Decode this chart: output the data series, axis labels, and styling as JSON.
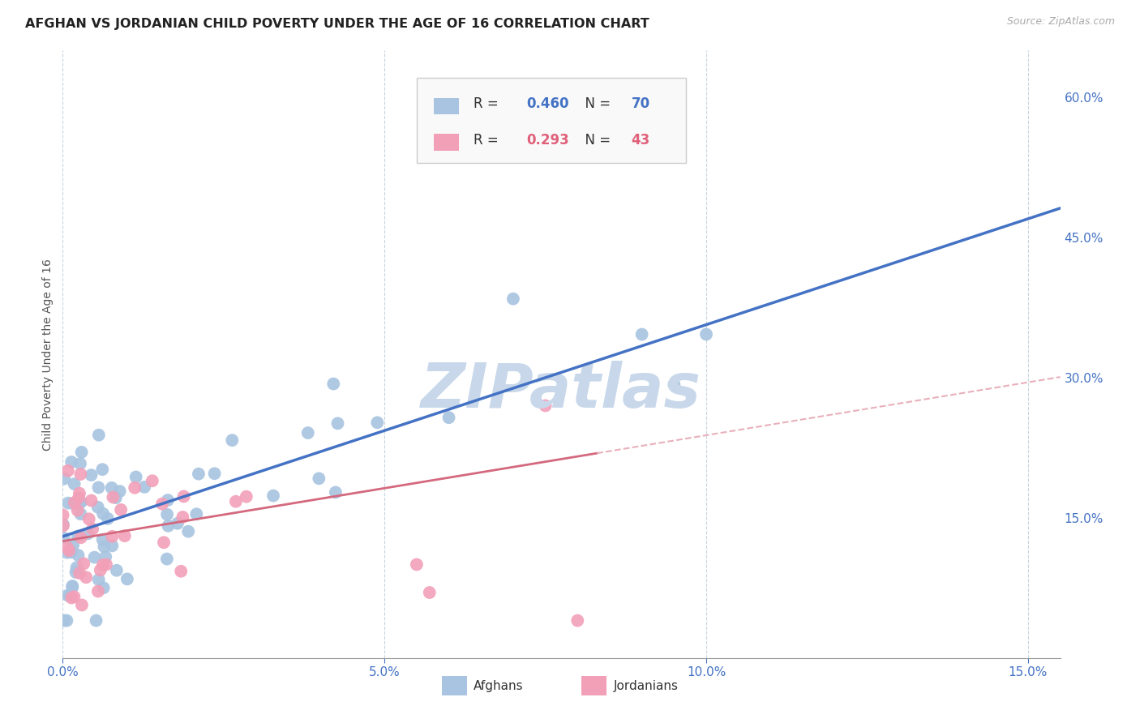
{
  "title": "AFGHAN VS JORDANIAN CHILD POVERTY UNDER THE AGE OF 16 CORRELATION CHART",
  "source": "Source: ZipAtlas.com",
  "ylabel": "Child Poverty Under the Age of 16",
  "xlim": [
    0.0,
    0.155
  ],
  "ylim": [
    0.0,
    0.65
  ],
  "xticks": [
    0.0,
    0.05,
    0.1,
    0.15
  ],
  "yticks_right": [
    0.15,
    0.3,
    0.45,
    0.6
  ],
  "ytick_labels_right": [
    "15.0%",
    "30.0%",
    "45.0%",
    "60.0%"
  ],
  "xtick_labels": [
    "0.0%",
    "5.0%",
    "10.0%",
    "15.0%"
  ],
  "afghan_R": 0.46,
  "afghan_N": 70,
  "jordanian_R": 0.293,
  "jordanian_N": 43,
  "afghan_color": "#a8c4e0",
  "jordanian_color": "#f2a0b8",
  "afghan_line_color": "#4472c4",
  "jordanian_line_color": "#d4697e",
  "jordanian_dashed_color": "#e8b0bc",
  "watermark": "ZIPatlas",
  "watermark_color": "#c8d8ea",
  "background_color": "#ffffff",
  "grid_color": "#c8d4dc",
  "grid_style": "--",
  "title_fontsize": 11.5,
  "axis_label_fontsize": 10,
  "tick_color": "#4472c4",
  "tick_fontsize": 11,
  "legend_bg": "#f8f8f8",
  "legend_border": "#d0d0d0",
  "afghan_line_y0": 0.13,
  "afghan_line_y15": 0.47,
  "jordanian_line_y0": 0.125,
  "jordanian_line_y15": 0.295
}
